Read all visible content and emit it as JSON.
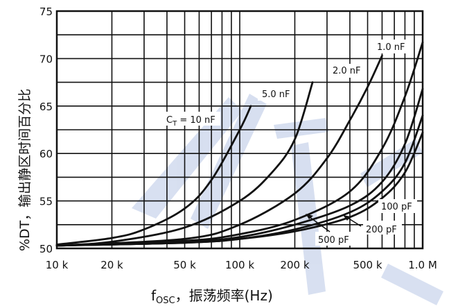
{
  "chart_data": {
    "type": "line",
    "x_scale": "log",
    "xlim": [
      10000,
      1000000
    ],
    "ylim": [
      50,
      75
    ],
    "grid": true,
    "xticks": [
      {
        "value": 10000,
        "label": "10 k"
      },
      {
        "value": 20000,
        "label": "20 k"
      },
      {
        "value": 50000,
        "label": "50 k"
      },
      {
        "value": 100000,
        "label": "100 k"
      },
      {
        "value": 200000,
        "label": "200 k"
      },
      {
        "value": 500000,
        "label": "500 k"
      },
      {
        "value": 1000000,
        "label": "1.0 M"
      }
    ],
    "xgrid": [
      10000,
      20000,
      30000,
      40000,
      50000,
      60000,
      70000,
      80000,
      90000,
      100000,
      200000,
      300000,
      400000,
      500000,
      600000,
      700000,
      800000,
      900000,
      1000000
    ],
    "yticks": [
      50,
      55,
      60,
      65,
      70,
      75
    ],
    "ygrid": [
      50,
      52.5,
      55,
      57.5,
      60,
      62.5,
      65,
      67.5,
      70,
      72.5,
      75
    ],
    "xlabel": "fOSC，振荡频率(Hz)",
    "xlabel_main": "f",
    "xlabel_sub": "OSC",
    "xlabel_rest": "，振荡频率(Hz)",
    "ylabel": "%DT，输出静区时间百分比",
    "series": [
      {
        "name": "CT = 10 nF",
        "label_main": "C",
        "label_sub": "T",
        "label_rest": " = 10 nF",
        "x": [
          10000,
          20000,
          30000,
          50000,
          70000,
          100000,
          115000
        ],
        "y": [
          50.4,
          51.1,
          52.0,
          54.2,
          57.2,
          62.5,
          65.0
        ]
      },
      {
        "name": "5.0 nF",
        "label_main": "5.0 nF",
        "x": [
          10000,
          20000,
          50000,
          100000,
          150000,
          200000,
          250000
        ],
        "y": [
          50.3,
          50.7,
          52.2,
          55.0,
          58.0,
          61.5,
          67.5
        ]
      },
      {
        "name": "2.0 nF",
        "label_main": "2.0 nF",
        "x": [
          10000,
          50000,
          100000,
          200000,
          300000,
          400000,
          500000,
          600000
        ],
        "y": [
          50.3,
          51.0,
          52.5,
          55.8,
          59.5,
          63.5,
          67.0,
          70.3
        ]
      },
      {
        "name": "1.0 nF",
        "label_main": "1.0 nF",
        "x": [
          10000,
          50000,
          100000,
          200000,
          400000,
          600000,
          800000,
          1000000
        ],
        "y": [
          50.3,
          50.8,
          51.5,
          53.0,
          56.0,
          60.5,
          66.0,
          71.7
        ]
      },
      {
        "name": "500 pF",
        "label_main": "500 pF",
        "x": [
          10000,
          50000,
          100000,
          200000,
          400000,
          600000,
          800000,
          1000000
        ],
        "y": [
          50.3,
          50.7,
          51.2,
          52.5,
          54.5,
          57.0,
          61.0,
          66.8
        ]
      },
      {
        "name": "200 pF",
        "label_main": "200 pF",
        "x": [
          10000,
          50000,
          100000,
          200000,
          400000,
          600000,
          800000,
          1000000
        ],
        "y": [
          50.3,
          50.6,
          51.0,
          52.0,
          53.8,
          56.0,
          59.0,
          64.0
        ]
      },
      {
        "name": "100 pF",
        "label_main": "100 pF",
        "x": [
          10000,
          50000,
          100000,
          200000,
          400000,
          600000,
          800000,
          1000000
        ],
        "y": [
          50.3,
          50.6,
          51.0,
          51.8,
          53.3,
          55.3,
          58.0,
          62.2
        ]
      }
    ]
  }
}
